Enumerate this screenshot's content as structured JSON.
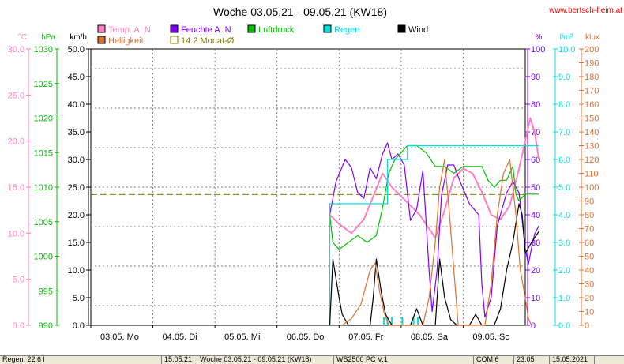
{
  "chart_data": {
    "type": "line",
    "title": "Woche 03.05.21 - 09.05.21 (KW18)",
    "site": "www.bertsch-heim.at",
    "x_labels": [
      "03.05.  Mo",
      "04.05.  Di",
      "05.05.  Mi",
      "06.05.  Do",
      "07.05.  Fr",
      "08.05.  Sa",
      "09.05.  So"
    ],
    "axes": {
      "temp": {
        "unit": "°C",
        "color": "#ff80c0",
        "min": 0,
        "max": 30,
        "ticks": [
          "0.0",
          "5.0",
          "10.0",
          "15.0",
          "20.0",
          "25.0",
          "30.0"
        ]
      },
      "pressure": {
        "unit": "hPa",
        "color": "#00c000",
        "min": 990,
        "max": 1030,
        "ticks": [
          "990",
          "995",
          "1000",
          "1005",
          "1010",
          "1015",
          "1020",
          "1025",
          "1030"
        ]
      },
      "wind": {
        "unit": "km/h",
        "color": "#000000",
        "min": 0,
        "max": 50,
        "ticks": [
          "0.0",
          "5.0",
          "10.0",
          "15.0",
          "20.0",
          "25.0",
          "30.0",
          "35.0",
          "40.0",
          "45.0",
          "50.0"
        ]
      },
      "humidity": {
        "unit": "%",
        "color": "#8000ff",
        "min": 0,
        "max": 100,
        "ticks": [
          "0",
          "10",
          "20",
          "30",
          "40",
          "50",
          "60",
          "70",
          "80",
          "90",
          "100"
        ]
      },
      "rain": {
        "unit": "l/m²",
        "color": "#00e0e0",
        "min": 0,
        "max": 10,
        "ticks": [
          "0.0",
          "1.0",
          "2.0",
          "3.0",
          "4.0",
          "5.0",
          "6.0",
          "7.0",
          "8.0",
          "9.0",
          "10.0"
        ]
      },
      "light": {
        "unit": "klux",
        "color": "#e07030",
        "min": 0,
        "max": 200,
        "ticks": [
          "0",
          "10",
          "20",
          "30",
          "40",
          "50",
          "60",
          "70",
          "80",
          "90",
          "100",
          "110",
          "120",
          "130",
          "140",
          "150",
          "160",
          "170",
          "180",
          "190",
          "200"
        ]
      }
    },
    "legend": [
      {
        "label": "Temp. A. N",
        "color": "#ff80c0"
      },
      {
        "label": "Feuchte A. N",
        "color": "#8000ff"
      },
      {
        "label": "Luftdruck",
        "color": "#00c000"
      },
      {
        "label": "Regen",
        "color": "#00e0e0"
      },
      {
        "label": "Wind",
        "color": "#000000"
      },
      {
        "label": "Helligkeit",
        "color": "#e07030"
      },
      {
        "label": "14.2 Monat-Ø",
        "color": "#808000"
      }
    ],
    "month_avg_temp": 14.2,
    "series": [
      {
        "name": "Temp. A. N",
        "axis": "temp",
        "color": "#ff80c0",
        "points": [
          [
            3.85,
            12.0
          ],
          [
            4.0,
            11.0
          ],
          [
            4.2,
            10.0
          ],
          [
            4.4,
            11.5
          ],
          [
            4.55,
            14.0
          ],
          [
            4.7,
            16.5
          ],
          [
            4.85,
            15.0
          ],
          [
            5.0,
            14.0
          ],
          [
            5.15,
            13.0
          ],
          [
            5.3,
            12.0
          ],
          [
            5.45,
            10.5
          ],
          [
            5.55,
            9.5
          ],
          [
            5.7,
            12.5
          ],
          [
            5.85,
            16.0
          ],
          [
            6.0,
            17.0
          ],
          [
            6.15,
            16.5
          ],
          [
            6.3,
            14.5
          ],
          [
            6.45,
            12.0
          ],
          [
            6.6,
            11.5
          ],
          [
            6.75,
            13.0
          ],
          [
            6.9,
            17.0
          ],
          [
            7.0,
            20.0
          ],
          [
            7.08,
            22.5
          ],
          [
            7.15,
            21.0
          ],
          [
            7.22,
            18.0
          ]
        ]
      },
      {
        "name": "Feuchte A. N",
        "axis": "humidity",
        "color": "#8000ff",
        "points": [
          [
            3.85,
            40
          ],
          [
            3.95,
            52
          ],
          [
            4.1,
            60
          ],
          [
            4.2,
            57
          ],
          [
            4.3,
            48
          ],
          [
            4.4,
            46
          ],
          [
            4.5,
            57
          ],
          [
            4.6,
            53
          ],
          [
            4.7,
            62
          ],
          [
            4.78,
            66
          ],
          [
            4.85,
            60
          ],
          [
            4.95,
            62
          ],
          [
            5.05,
            58
          ],
          [
            5.15,
            38
          ],
          [
            5.25,
            42
          ],
          [
            5.35,
            56
          ],
          [
            5.45,
            20
          ],
          [
            5.5,
            5
          ],
          [
            5.58,
            20
          ],
          [
            5.65,
            47
          ],
          [
            5.75,
            58
          ],
          [
            5.85,
            58
          ],
          [
            5.95,
            52
          ],
          [
            6.1,
            44
          ],
          [
            6.25,
            40
          ],
          [
            6.3,
            15
          ],
          [
            6.35,
            3
          ],
          [
            6.45,
            10
          ],
          [
            6.55,
            36
          ],
          [
            6.7,
            48
          ],
          [
            6.8,
            52
          ],
          [
            6.9,
            48
          ],
          [
            6.95,
            38
          ],
          [
            7.0,
            28
          ],
          [
            7.05,
            22
          ],
          [
            7.1,
            28
          ],
          [
            7.15,
            33
          ],
          [
            7.22,
            36
          ]
        ]
      },
      {
        "name": "Luftdruck",
        "axis": "pressure",
        "color": "#00c000",
        "points": [
          [
            3.85,
            1006
          ],
          [
            3.9,
            1002
          ],
          [
            4.0,
            1001
          ],
          [
            4.15,
            1002
          ],
          [
            4.3,
            1003
          ],
          [
            4.45,
            1002
          ],
          [
            4.6,
            1003
          ],
          [
            4.7,
            1007
          ],
          [
            4.8,
            1012
          ],
          [
            4.9,
            1014
          ],
          [
            5.0,
            1015
          ],
          [
            5.1,
            1016
          ],
          [
            5.25,
            1016
          ],
          [
            5.4,
            1015
          ],
          [
            5.55,
            1013
          ],
          [
            5.7,
            1013
          ],
          [
            5.85,
            1012
          ],
          [
            6.0,
            1013
          ],
          [
            6.15,
            1013
          ],
          [
            6.3,
            1013
          ],
          [
            6.4,
            1011
          ],
          [
            6.5,
            1010
          ],
          [
            6.6,
            1011
          ],
          [
            6.7,
            1011
          ],
          [
            6.8,
            1013
          ],
          [
            6.85,
            1009
          ],
          [
            6.9,
            1008
          ],
          [
            7.0,
            1009
          ],
          [
            7.22,
            1009
          ]
        ]
      },
      {
        "name": "Regen",
        "axis": "rain",
        "color": "#00e0e0",
        "points": [
          [
            3.85,
            0
          ],
          [
            3.85,
            4.4
          ],
          [
            4.78,
            4.4
          ],
          [
            4.78,
            6.0
          ],
          [
            5.1,
            6.0
          ],
          [
            5.1,
            6.5
          ],
          [
            7.22,
            6.5
          ]
        ]
      },
      {
        "name": "Wind",
        "axis": "wind",
        "color": "#000000",
        "points": [
          [
            3.85,
            0
          ],
          [
            3.9,
            12
          ],
          [
            4.0,
            5
          ],
          [
            4.05,
            2
          ],
          [
            4.15,
            0
          ],
          [
            4.5,
            0
          ],
          [
            4.55,
            5
          ],
          [
            4.6,
            12
          ],
          [
            4.68,
            6
          ],
          [
            4.75,
            2
          ],
          [
            4.85,
            0
          ],
          [
            5.15,
            0
          ],
          [
            5.25,
            3
          ],
          [
            5.35,
            0
          ],
          [
            5.55,
            0
          ],
          [
            5.62,
            12
          ],
          [
            5.7,
            5
          ],
          [
            5.8,
            1
          ],
          [
            5.9,
            0
          ],
          [
            6.1,
            0
          ],
          [
            6.2,
            2
          ],
          [
            6.3,
            0
          ],
          [
            6.5,
            0
          ],
          [
            6.6,
            3
          ],
          [
            6.7,
            10
          ],
          [
            6.8,
            15
          ],
          [
            6.9,
            22
          ],
          [
            6.95,
            20
          ],
          [
            7.0,
            13
          ],
          [
            7.1,
            15
          ],
          [
            7.22,
            17
          ]
        ]
      },
      {
        "name": "Helligkeit",
        "axis": "light",
        "color": "#e07030",
        "points": [
          [
            4.05,
            0
          ],
          [
            4.2,
            5
          ],
          [
            4.35,
            15
          ],
          [
            4.5,
            40
          ],
          [
            4.58,
            45
          ],
          [
            4.65,
            25
          ],
          [
            4.72,
            10
          ],
          [
            4.8,
            0
          ],
          [
            5.35,
            0
          ],
          [
            5.45,
            20
          ],
          [
            5.55,
            60
          ],
          [
            5.62,
            100
          ],
          [
            5.7,
            120
          ],
          [
            5.78,
            80
          ],
          [
            5.85,
            40
          ],
          [
            5.92,
            0
          ],
          [
            6.35,
            0
          ],
          [
            6.45,
            30
          ],
          [
            6.55,
            80
          ],
          [
            6.65,
            110
          ],
          [
            6.75,
            120
          ],
          [
            6.85,
            80
          ],
          [
            6.92,
            40
          ],
          [
            7.0,
            20
          ],
          [
            7.05,
            5
          ],
          [
            7.1,
            0
          ]
        ]
      }
    ],
    "rain_spikes": [
      4.72,
      4.78,
      4.85,
      5.02,
      5.2,
      5.27
    ]
  },
  "status_bar": {
    "cell1": "Regen: 22.6 l",
    "cell2": "15.05.21",
    "cell3": "Woche 03.05.21 - 09.05.21 (KW18)",
    "cell4": "WS2500 PC V.1",
    "cell5": "COM 6",
    "cell6": "23:05",
    "cell7": "15.05.2021"
  }
}
